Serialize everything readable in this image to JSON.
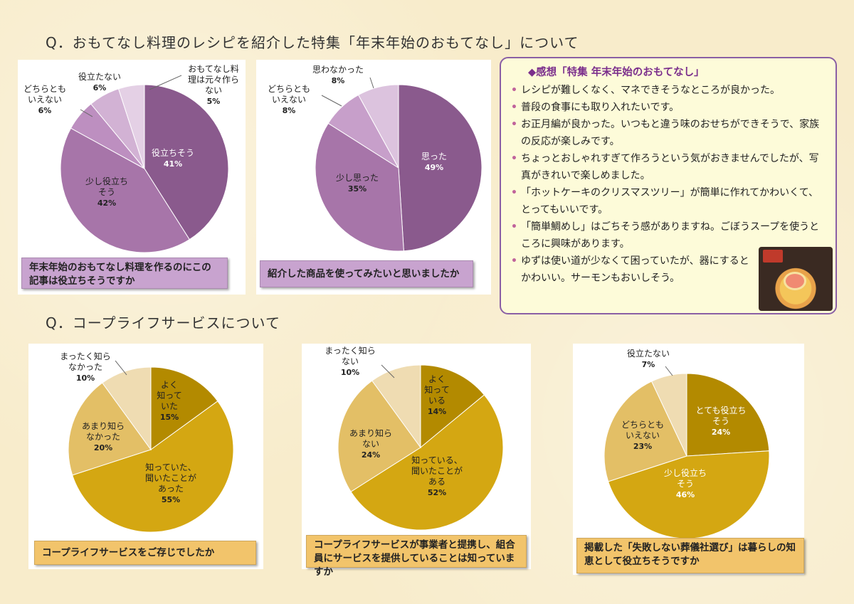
{
  "section1_title": "Q．おもてなし料理のレシピを紹介した特集「年末年始のおもてなし」について",
  "section2_title": "Q．コープライフサービスについて",
  "comments": {
    "title": "◆感想「特集 年末年始のおもてなし」",
    "items": [
      "レシピが難しくなく、マネできそうなところが良かった。",
      "普段の食事にも取り入れたいです。",
      "お正月編が良かった。いつもと違う味のおせちができそうで、家族の反応が楽しみです。",
      "ちょっとおしゃれすぎて作ろうという気がおきませんでしたが、写真がきれいで楽しめました。",
      "「ホットケーキのクリスマスツリー」が簡単に作れてかわいくて、とってもいいです。",
      "「簡単鯛めし」はごちそう感がありますね。ごぼうスープを使うところに興味があります。",
      "ゆずは使い道が少なくて困っていたが、器にするとかわいい。サーモンもおいしそう。"
    ]
  },
  "charts": [
    {
      "caption": "年末年始のおもてなし料理を作るのにこの記事は役立ちそうですか"
    },
    {
      "caption": "紹介した商品を使ってみたいと思いましたか"
    },
    {
      "caption": "コープライフサービスをご存じでしたか"
    },
    {
      "caption": "コープライフサービスが事業者と提携し、組合員にサービスを提供していることは知っていますか"
    },
    {
      "caption": "掲載した「失敗しない葬儀社選び」は暮らしの知恵として役立ちそうですか"
    }
  ],
  "chart_data": [
    {
      "type": "pie",
      "slices": [
        {
          "label": "役立ちそう",
          "value": 41,
          "color": "#8a5a8d"
        },
        {
          "label": "少し役立ちそう",
          "value": 42,
          "color": "#a775a9"
        },
        {
          "label": "どちらともいえない",
          "value": 6,
          "color": "#bd8fc0"
        },
        {
          "label": "役立たない",
          "value": 6,
          "color": "#d2b2d4"
        },
        {
          "label": "おもてなし料理は元々作らない",
          "value": 5,
          "color": "#e4d0e5"
        }
      ]
    },
    {
      "type": "pie",
      "slices": [
        {
          "label": "思った",
          "value": 49,
          "color": "#8a5a8d"
        },
        {
          "label": "少し思った",
          "value": 35,
          "color": "#a775a9"
        },
        {
          "label": "どちらともいえない",
          "value": 8,
          "color": "#c79fca"
        },
        {
          "label": "思わなかった",
          "value": 8,
          "color": "#dcc3de"
        }
      ]
    },
    {
      "type": "pie",
      "slices": [
        {
          "label": "よく知っていた",
          "value": 15,
          "color": "#b38a00"
        },
        {
          "label": "知っていた、聞いたことがあった",
          "value": 55,
          "color": "#d4a712"
        },
        {
          "label": "あまり知らなかった",
          "value": 20,
          "color": "#e3bf66"
        },
        {
          "label": "まったく知らなかった",
          "value": 10,
          "color": "#efdcb2"
        }
      ]
    },
    {
      "type": "pie",
      "slices": [
        {
          "label": "よく知っている",
          "value": 14,
          "color": "#b38a00"
        },
        {
          "label": "知っている、聞いたことがある",
          "value": 52,
          "color": "#d4a712"
        },
        {
          "label": "あまり知らない",
          "value": 24,
          "color": "#e3bf66"
        },
        {
          "label": "まったく知らない",
          "value": 10,
          "color": "#efdcb2"
        }
      ]
    },
    {
      "type": "pie",
      "slices": [
        {
          "label": "とても役立ちそう",
          "value": 24,
          "color": "#b38a00"
        },
        {
          "label": "少し役立ちそう",
          "value": 46,
          "color": "#d4a712"
        },
        {
          "label": "どちらともいえない",
          "value": 23,
          "color": "#e3bf66"
        },
        {
          "label": "役立たない",
          "value": 7,
          "color": "#efdcb2"
        }
      ]
    }
  ]
}
